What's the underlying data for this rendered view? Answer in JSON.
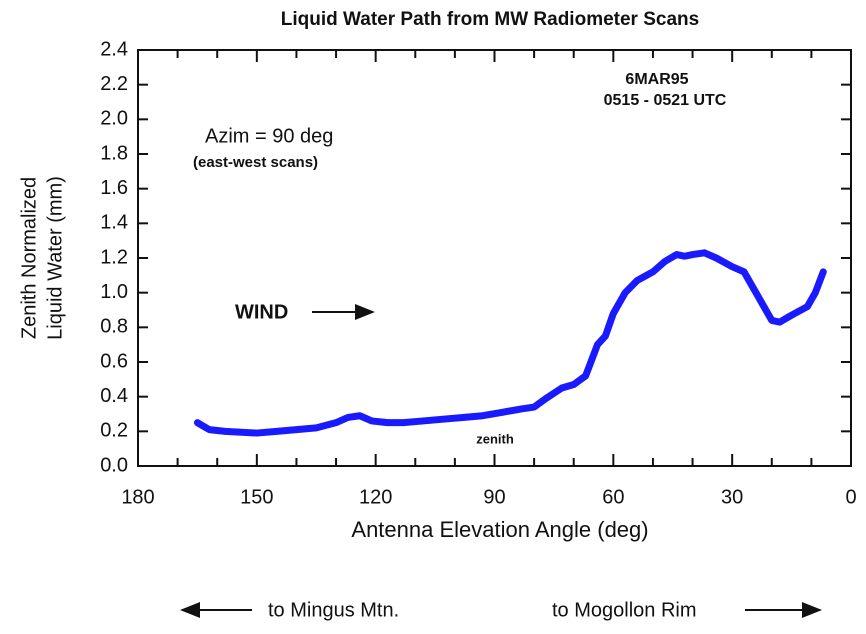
{
  "chart_data": {
    "type": "line",
    "title": "Liquid Water Path from MW Radiometer Scans",
    "xlabel": "Antenna Elevation Angle (deg)",
    "ylabel": [
      "Zenith Normalized",
      "Liquid Water (mm)"
    ],
    "annotations": [
      "Azim = 90 deg",
      "(east-west scans)",
      "6MAR95",
      "0515 - 0521 UTC",
      "WIND",
      "zenith",
      "to Mingus Mtn.",
      "to Mogollon Rim"
    ],
    "x": [
      165,
      162,
      158,
      150,
      145,
      140,
      135,
      130,
      127,
      124,
      121,
      117,
      113,
      108,
      103,
      98,
      93,
      88,
      83,
      80,
      77,
      73,
      70,
      67,
      64,
      62,
      60,
      57,
      54,
      50,
      47,
      44,
      42,
      40,
      37,
      34,
      30,
      27,
      24,
      20,
      18,
      15,
      11,
      9,
      7
    ],
    "series": [
      {
        "name": "Liquid Water",
        "color": "#1a1aff",
        "values": [
          0.25,
          0.21,
          0.2,
          0.19,
          0.2,
          0.21,
          0.22,
          0.25,
          0.28,
          0.29,
          0.26,
          0.25,
          0.25,
          0.26,
          0.27,
          0.28,
          0.29,
          0.31,
          0.33,
          0.34,
          0.39,
          0.45,
          0.47,
          0.52,
          0.7,
          0.75,
          0.88,
          1.0,
          1.07,
          1.12,
          1.18,
          1.22,
          1.21,
          1.22,
          1.23,
          1.2,
          1.15,
          1.12,
          1.0,
          0.84,
          0.83,
          0.87,
          0.92,
          1.0,
          1.12
        ]
      }
    ],
    "xlim": [
      180,
      0
    ],
    "xticks": [
      180,
      150,
      120,
      90,
      60,
      30,
      0
    ],
    "xminorticks": [
      170,
      160,
      140,
      130,
      110,
      100,
      80,
      70,
      50,
      40,
      20,
      10
    ],
    "ylim": [
      0,
      2.4
    ],
    "yticks": [
      {
        "value": 0,
        "label": "0.0"
      },
      0.2,
      0.4,
      0.6,
      0.8,
      {
        "value": 1,
        "label": "1.0"
      },
      1.2,
      1.4,
      1.6,
      1.8,
      {
        "value": 2,
        "label": "2.0"
      },
      2.2,
      2.4
    ]
  }
}
